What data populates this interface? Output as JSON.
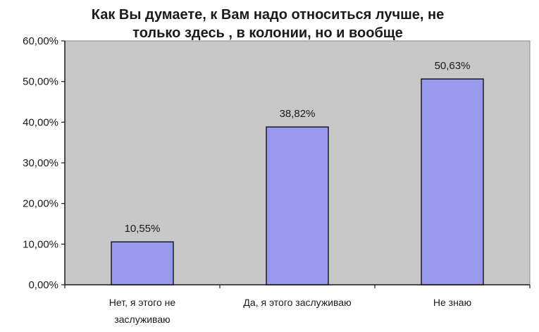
{
  "chart_data": {
    "type": "bar",
    "title_lines": [
      "Как Вы думаете, к Вам надо относиться лучше, не",
      "только здесь , в колонии, но и вообще"
    ],
    "categories": [
      [
        "Нет, я этого не",
        "заслуживаю"
      ],
      [
        "Да, я этого заслуживаю"
      ],
      [
        "Не знаю"
      ]
    ],
    "values": [
      10.55,
      38.82,
      50.63
    ],
    "data_labels": [
      "10,55%",
      "38,82%",
      "50,63%"
    ],
    "yticks": [
      0,
      10,
      20,
      30,
      40,
      50,
      60
    ],
    "ytick_labels": [
      "0,00%",
      "10,00%",
      "20,00%",
      "30,00%",
      "40,00%",
      "50,00%",
      "60,00%"
    ],
    "ylim": [
      0,
      60
    ],
    "grid": false,
    "legend": "none",
    "colors": {
      "bar_fill": "#9999ee",
      "bar_stroke": "#1a1a1a",
      "plot_background": "#c8c8c8",
      "axis": "#1a1a1a"
    }
  }
}
